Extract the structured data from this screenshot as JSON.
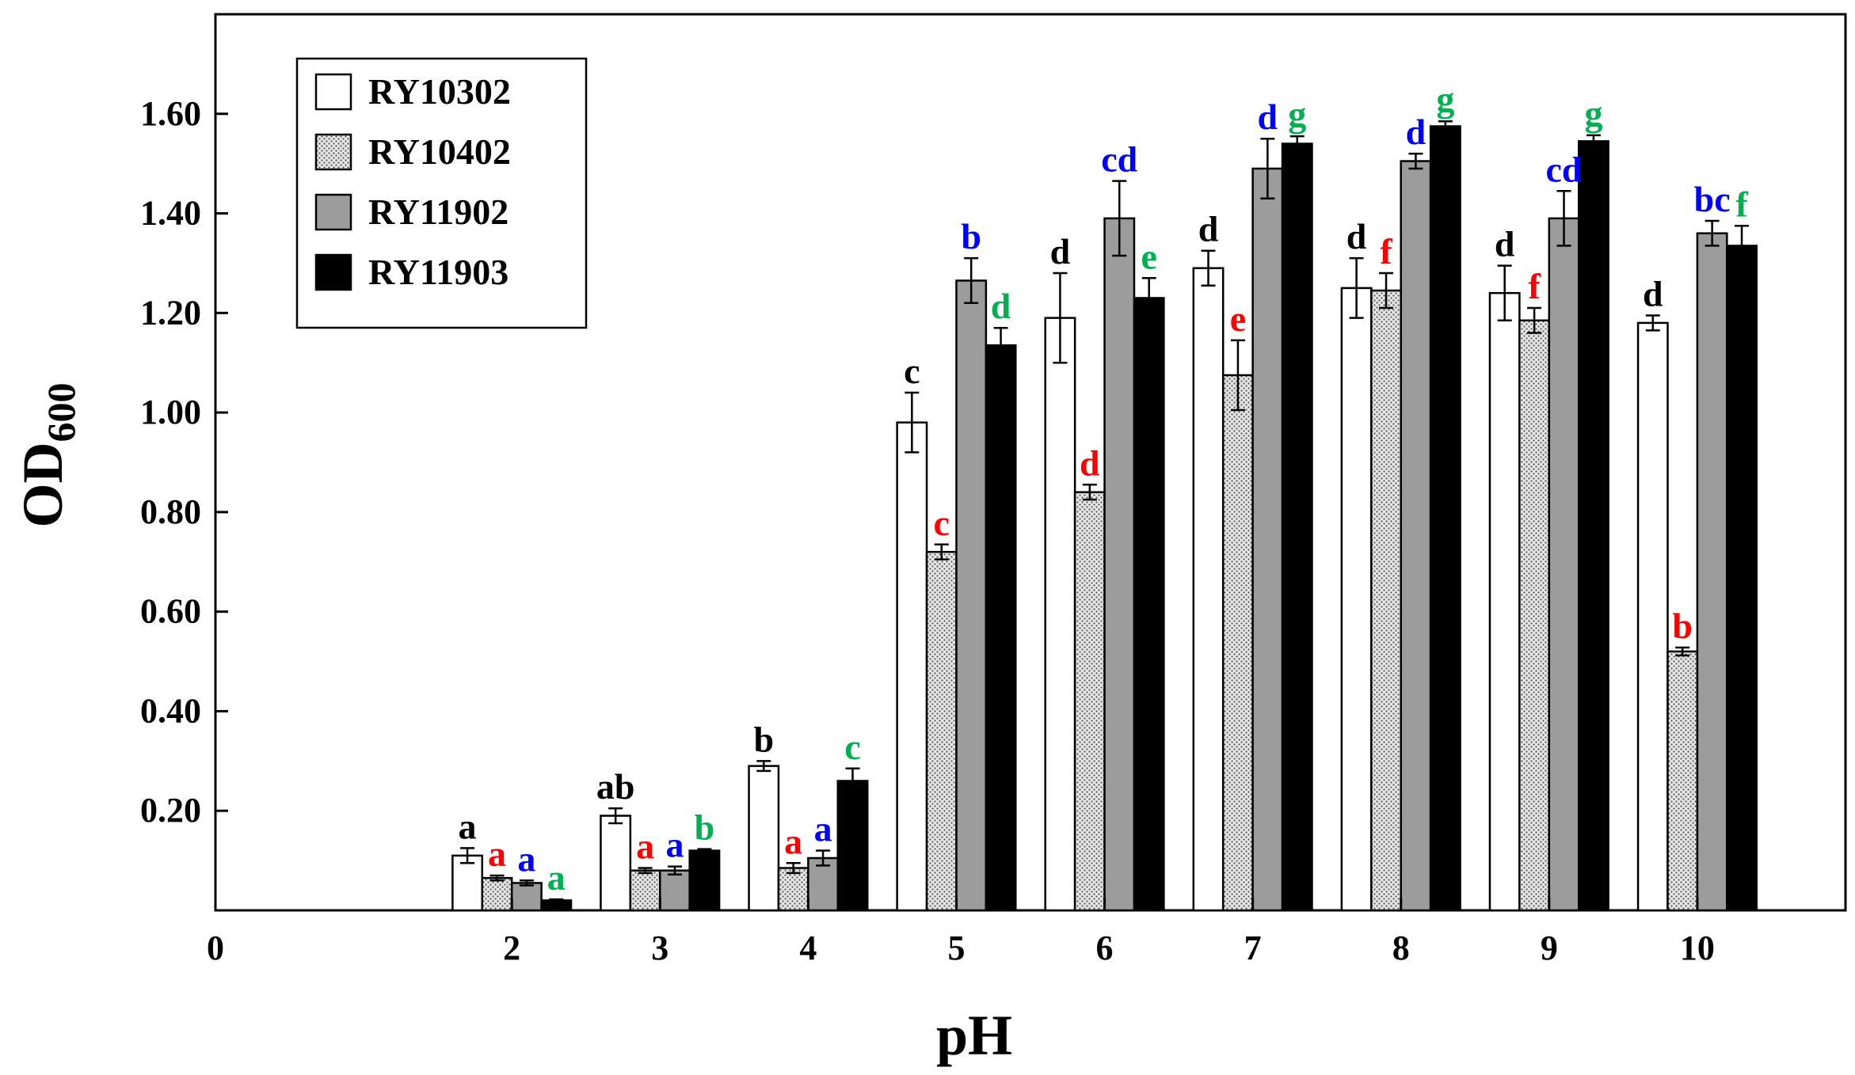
{
  "chart_data": {
    "type": "bar",
    "title": "",
    "xlabel": "pH",
    "ylabel": "OD",
    "ylabel_sub": "600",
    "x_ticks": [
      "0",
      "2",
      "3",
      "4",
      "5",
      "6",
      "7",
      "8",
      "9",
      "10"
    ],
    "x_tick_values": [
      0,
      2,
      3,
      4,
      5,
      6,
      7,
      8,
      9,
      10
    ],
    "y_ticks": [
      "0.20",
      "0.40",
      "0.60",
      "0.80",
      "1.00",
      "1.20",
      "1.40",
      "1.60"
    ],
    "y_tick_values": [
      0.2,
      0.4,
      0.6,
      0.8,
      1.0,
      1.2,
      1.4,
      1.6
    ],
    "xlim": [
      0,
      11
    ],
    "ylim": [
      0,
      1.8
    ],
    "categories": [
      2,
      3,
      4,
      5,
      6,
      7,
      8,
      9,
      10
    ],
    "legend_position": "top-left",
    "series": [
      {
        "name": "RY10302",
        "fill": "#ffffff",
        "pattern": "none",
        "label_color": "#000000",
        "values": [
          0.11,
          0.19,
          0.29,
          0.98,
          1.19,
          1.29,
          1.25,
          1.24,
          1.18
        ],
        "errors": [
          0.015,
          0.015,
          0.01,
          0.06,
          0.09,
          0.035,
          0.06,
          0.055,
          0.015
        ],
        "letters": [
          "a",
          "ab",
          "b",
          "c",
          "d",
          "d",
          "d",
          "d",
          "d"
        ]
      },
      {
        "name": "RY10402",
        "fill": "#d9d9d9",
        "pattern": "dots",
        "label_color": "#ff0000",
        "values": [
          0.065,
          0.08,
          0.085,
          0.72,
          0.84,
          1.075,
          1.245,
          1.185,
          0.52
        ],
        "errors": [
          0.005,
          0.005,
          0.01,
          0.015,
          0.015,
          0.07,
          0.035,
          0.025,
          0.008
        ],
        "letters": [
          "a",
          "a",
          "a",
          "c",
          "d",
          "e",
          "f",
          "f",
          "b"
        ]
      },
      {
        "name": "RY11902",
        "fill": "#9c9c9c",
        "pattern": "none",
        "label_color": "#0000ff",
        "values": [
          0.055,
          0.08,
          0.105,
          1.265,
          1.39,
          1.49,
          1.505,
          1.39,
          1.36
        ],
        "errors": [
          0.005,
          0.008,
          0.015,
          0.045,
          0.075,
          0.06,
          0.015,
          0.055,
          0.025
        ],
        "letters": [
          "a",
          "a",
          "a",
          "b",
          "cd",
          "d",
          "d",
          "cd",
          "bc"
        ]
      },
      {
        "name": "RY11903",
        "fill": "#000000",
        "pattern": "none",
        "label_color": "#00b050",
        "values": [
          0.02,
          0.12,
          0.26,
          1.135,
          1.23,
          1.54,
          1.575,
          1.545,
          1.335
        ],
        "errors": [
          0.002,
          0.003,
          0.025,
          0.035,
          0.04,
          0.015,
          0.01,
          0.012,
          0.04
        ],
        "letters": [
          "a",
          "b",
          "c",
          "d",
          "e",
          "g",
          "g",
          "g",
          "f"
        ]
      }
    ]
  }
}
